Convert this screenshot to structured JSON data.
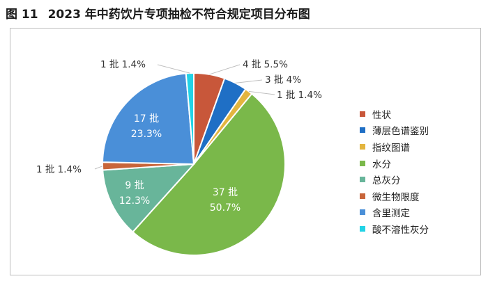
{
  "figure": {
    "number": "图 11",
    "title": "2023 年中药饮片专项抽检不符合规定项目分布图"
  },
  "chart_data": {
    "type": "pie",
    "title": "",
    "slices": [
      {
        "name": "性状",
        "count": 4,
        "percent": 5.5,
        "label_text": "4 批   5.5%",
        "color": "#c8573a"
      },
      {
        "name": "薄层色谱鉴别",
        "count": 3,
        "percent": 4.0,
        "label_text": "3 批   4%",
        "color": "#1f6fc5"
      },
      {
        "name": "指纹图谱",
        "count": 1,
        "percent": 1.4,
        "label_text": "1 批   1.4%",
        "color": "#e3b53f"
      },
      {
        "name": "水分",
        "count": 37,
        "percent": 50.7,
        "label_text": "37 批|50.7%",
        "color": "#7ab84a"
      },
      {
        "name": "总灰分",
        "count": 9,
        "percent": 12.3,
        "label_text": "9 批|12.3%",
        "color": "#68b59a"
      },
      {
        "name": "微生物限度",
        "count": 1,
        "percent": 1.4,
        "label_text": "1 批   1.4%",
        "color": "#c8653a"
      },
      {
        "name": "含里测定",
        "count": 17,
        "percent": 23.3,
        "label_text": "17 批|23.3%",
        "color": "#4a8fd8"
      },
      {
        "name": "酸不溶性灰分",
        "count": 1,
        "percent": 1.4,
        "label_text": "1 批   1.4%",
        "color": "#22d3e6"
      }
    ],
    "legend_position": "right"
  }
}
